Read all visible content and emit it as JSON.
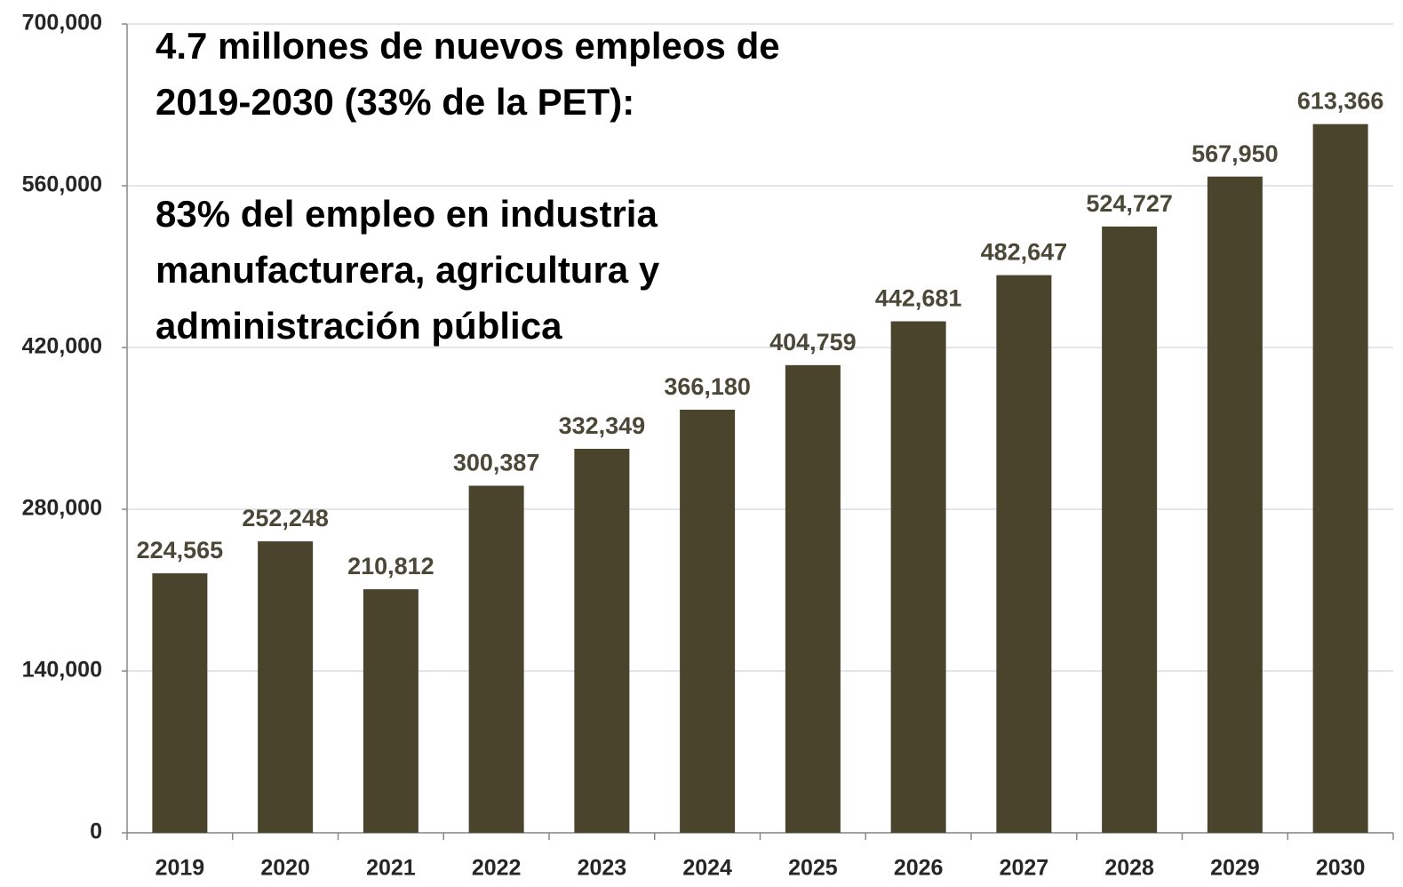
{
  "chart_data": {
    "type": "bar",
    "annotations": [
      [
        "4.7 millones de nuevos empleos de",
        "2019-2030 (33% de la PET):"
      ],
      [
        "83% del empleo en industria",
        "manufacturera, agricultura y",
        "administración pública"
      ]
    ],
    "categories": [
      "2019",
      "2020",
      "2021",
      "2022",
      "2023",
      "2024",
      "2025",
      "2026",
      "2027",
      "2028",
      "2029",
      "2030"
    ],
    "values": [
      224565,
      252248,
      210812,
      300387,
      332349,
      366180,
      404759,
      442681,
      482647,
      524727,
      567950,
      613366
    ],
    "value_labels": [
      "224,565",
      "252,248",
      "210,812",
      "300,387",
      "332,349",
      "366,180",
      "404,759",
      "442,681",
      "482,647",
      "524,727",
      "567,950",
      "613,366"
    ],
    "color": "#4a442d",
    "ylim": [
      0,
      700000
    ],
    "yticks": [
      0,
      {
        "value": 140000,
        "label": "140,000"
      },
      {
        "value": 280000,
        "label": "280,000"
      },
      {
        "value": 420000,
        "label": "420,000"
      },
      {
        "value": 560000,
        "label": "560,000"
      },
      {
        "value": 700000,
        "label": "700,000"
      }
    ],
    "grid": true
  }
}
